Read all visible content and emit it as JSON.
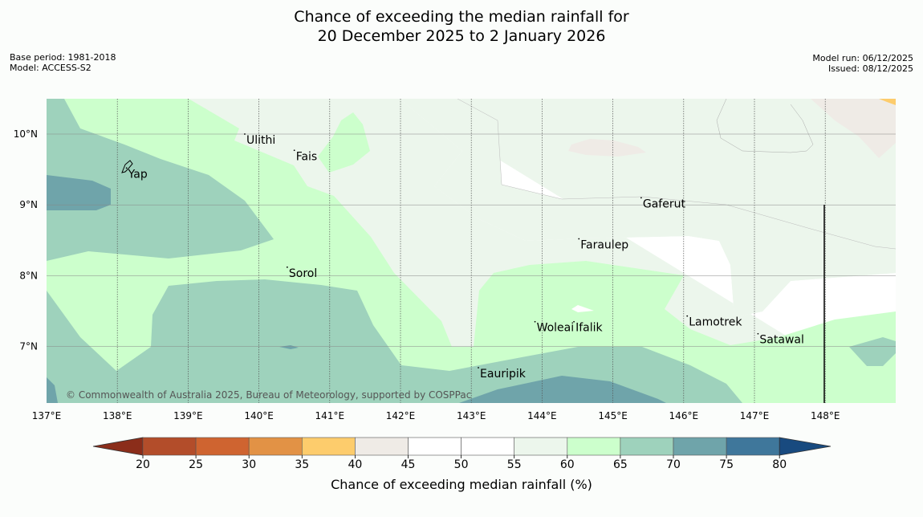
{
  "title": {
    "line1": "Chance of exceeding the median rainfall for",
    "line2": "20 December 2025 to 2 January 2026"
  },
  "meta": {
    "base_period": "Base period: 1981-2018",
    "model": "Model: ACCESS-S2",
    "model_run": "Model run: 06/12/2025",
    "issued": "Issued: 08/12/2025"
  },
  "map": {
    "lon_ticks": [
      "137°E",
      "138°E",
      "139°E",
      "140°E",
      "141°E",
      "142°E",
      "143°E",
      "144°E",
      "145°E",
      "146°E",
      "147°E",
      "148°E"
    ],
    "lat_ticks": [
      "10°N",
      "9°N",
      "8°N",
      "7°N"
    ],
    "places": [
      {
        "name": "Ulithi",
        "lon": 139.8,
        "lat": 10.0
      },
      {
        "name": "Fais",
        "lon": 140.5,
        "lat": 9.77
      },
      {
        "name": "Yap",
        "lon": 138.13,
        "lat": 9.52
      },
      {
        "name": "Gaferut",
        "lon": 145.4,
        "lat": 9.1
      },
      {
        "name": "Faraulep",
        "lon": 144.52,
        "lat": 8.52
      },
      {
        "name": "Sorol",
        "lon": 140.4,
        "lat": 8.12
      },
      {
        "name": "Lamotrek",
        "lon": 146.05,
        "lat": 7.43
      },
      {
        "name": "Woleai",
        "lon": 143.9,
        "lat": 7.35
      },
      {
        "name": "Ifalik",
        "lon": 144.45,
        "lat": 7.35
      },
      {
        "name": "Satawal",
        "lon": 147.05,
        "lat": 7.18
      },
      {
        "name": "Eauripik",
        "lon": 143.1,
        "lat": 6.7
      }
    ],
    "copyright": "© Commonwealth of Australia 2025, Bureau of Meteorology, supported by COSPPac"
  },
  "colorbar": {
    "label": "Chance of exceeding median rainfall (%)",
    "ticks": [
      "20",
      "25",
      "30",
      "35",
      "40",
      "45",
      "50",
      "55",
      "60",
      "65",
      "70",
      "75",
      "80"
    ],
    "colors": [
      "#8b2d1a",
      "#b34d2a",
      "#cf6430",
      "#e29245",
      "#fdcc6c",
      "#efebe6",
      "#ffffff",
      "#ffffff",
      "#ecf6ec",
      "#ccffcc",
      "#9ed2bc",
      "#6fa4aa",
      "#3f779b",
      "#184a7f"
    ]
  }
}
